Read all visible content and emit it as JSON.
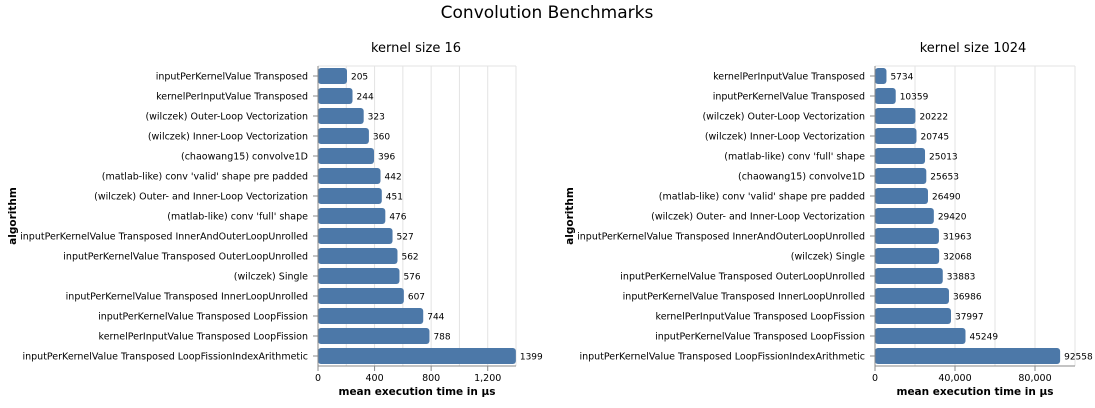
{
  "title": "Convolution Benchmarks",
  "chart_data": [
    {
      "type": "bar",
      "orientation": "horizontal",
      "title": "kernel size 16",
      "xlabel": "mean execution time in µs",
      "ylabel": "algorithm",
      "xlim": [
        0,
        1400
      ],
      "xticks": [
        0,
        400,
        800,
        1200
      ],
      "xtick_labels": [
        "0",
        "400",
        "800",
        "1,200"
      ],
      "grid": true,
      "bar_color": "#4c78a8",
      "categories": [
        "inputPerKernelValue Transposed",
        "kernelPerInputValue Transposed",
        "(wilczek) Outer-Loop Vectorization",
        "(wilczek) Inner-Loop Vectorization",
        "(chaowang15) convolve1D",
        "(matlab-like) conv 'valid' shape pre padded",
        "(wilczek) Outer- and Inner-Loop Vectorization",
        "(matlab-like) conv 'full' shape",
        "inputPerKernelValue Transposed InnerAndOuterLoopUnrolled",
        "inputPerKernelValue Transposed OuterLoopUnrolled",
        "(wilczek) Single",
        "inputPerKernelValue Transposed InnerLoopUnrolled",
        "inputPerKernelValue Transposed LoopFission",
        "kernelPerInputValue Transposed LoopFission",
        "inputPerKernelValue Transposed LoopFissionIndexArithmetic"
      ],
      "values": [
        205,
        244,
        323,
        360,
        396,
        442,
        451,
        476,
        527,
        562,
        576,
        607,
        744,
        788,
        1399
      ]
    },
    {
      "type": "bar",
      "orientation": "horizontal",
      "title": "kernel size 1024",
      "xlabel": "mean execution time in µs",
      "ylabel": "algorithm",
      "xlim": [
        0,
        100000
      ],
      "xticks": [
        0,
        40000,
        80000
      ],
      "xtick_labels": [
        "0",
        "40,000",
        "80,000"
      ],
      "grid": true,
      "bar_color": "#4c78a8",
      "categories": [
        "kernelPerInputValue Transposed",
        "inputPerKernelValue Transposed",
        "(wilczek) Outer-Loop Vectorization",
        "(wilczek) Inner-Loop Vectorization",
        "(matlab-like) conv 'full' shape",
        "(chaowang15) convolve1D",
        "(matlab-like) conv 'valid' shape pre padded",
        "(wilczek) Outer- and Inner-Loop Vectorization",
        "inputPerKernelValue Transposed InnerAndOuterLoopUnrolled",
        "(wilczek) Single",
        "inputPerKernelValue Transposed OuterLoopUnrolled",
        "inputPerKernelValue Transposed InnerLoopUnrolled",
        "kernelPerInputValue Transposed LoopFission",
        "inputPerKernelValue Transposed LoopFission",
        "inputPerKernelValue Transposed LoopFissionIndexArithmetic"
      ],
      "values": [
        5734,
        10359,
        20222,
        20745,
        25013,
        25653,
        26490,
        29420,
        31963,
        32068,
        33883,
        36986,
        37997,
        45249,
        92558
      ]
    }
  ]
}
